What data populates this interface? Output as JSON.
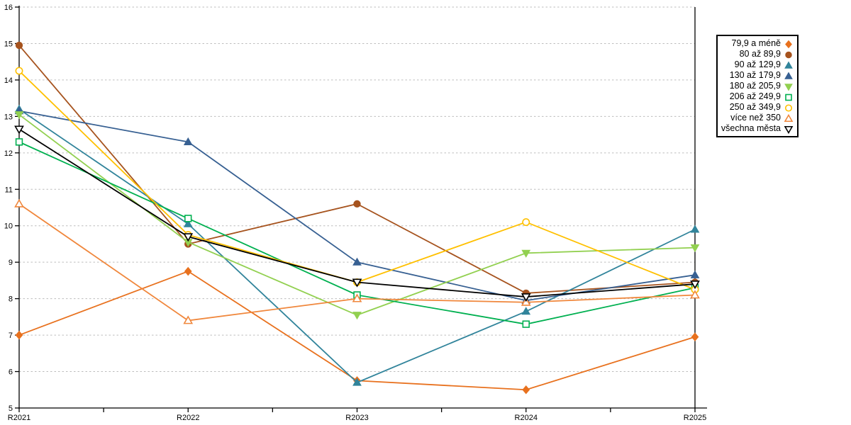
{
  "chart_data": {
    "type": "line",
    "title": "",
    "xlabel": "",
    "ylabel": "",
    "categories": [
      "R2021",
      "R2022",
      "R2023",
      "R2024",
      "R2025"
    ],
    "ylim": [
      5,
      16
    ],
    "yticks": [
      5,
      6,
      7,
      8,
      9,
      10,
      11,
      12,
      13,
      14,
      15,
      16
    ],
    "grid": "horizontal-dashed",
    "legend_position": "right-box",
    "series": [
      {
        "name": "79,9 a méně",
        "color": "#E8711E",
        "marker": "diamond",
        "fill": "solid",
        "values": [
          7.0,
          8.75,
          5.75,
          5.5,
          6.95
        ]
      },
      {
        "name": "80 až 89,9",
        "color": "#A6531E",
        "marker": "circle",
        "fill": "solid",
        "values": [
          14.95,
          9.5,
          10.6,
          8.15,
          8.45
        ]
      },
      {
        "name": "90 až 129,9",
        "color": "#31849B",
        "marker": "triangle-up",
        "fill": "solid",
        "values": [
          13.2,
          10.05,
          5.7,
          7.65,
          9.9
        ]
      },
      {
        "name": "130 až 179,9",
        "color": "#376092",
        "marker": "triangle-up",
        "fill": "solid",
        "values": [
          13.15,
          12.3,
          9.0,
          7.95,
          8.65
        ]
      },
      {
        "name": "180 až 205,9",
        "color": "#92D050",
        "marker": "triangle-down",
        "fill": "solid",
        "values": [
          13.05,
          9.55,
          7.55,
          9.25,
          9.4
        ]
      },
      {
        "name": "206 až 249,9",
        "color": "#00B050",
        "marker": "square",
        "fill": "open",
        "values": [
          12.3,
          10.2,
          8.1,
          7.3,
          8.3
        ]
      },
      {
        "name": "250 až 349,9",
        "color": "#FFC000",
        "marker": "circle",
        "fill": "open",
        "values": [
          14.25,
          9.75,
          8.45,
          10.1,
          8.25
        ]
      },
      {
        "name": "více než 350",
        "color": "#F0873C",
        "marker": "triangle-up",
        "fill": "open",
        "values": [
          10.6,
          7.4,
          8.0,
          7.9,
          8.1
        ]
      },
      {
        "name": "všechna města",
        "color": "#000000",
        "marker": "triangle-down",
        "fill": "open",
        "values": [
          12.65,
          9.7,
          8.45,
          8.05,
          8.4
        ]
      }
    ]
  },
  "colors": {
    "background": "#FFFFFF",
    "grid": "#BDBDBD",
    "axis": "#000000",
    "tick_text": "#000000"
  }
}
